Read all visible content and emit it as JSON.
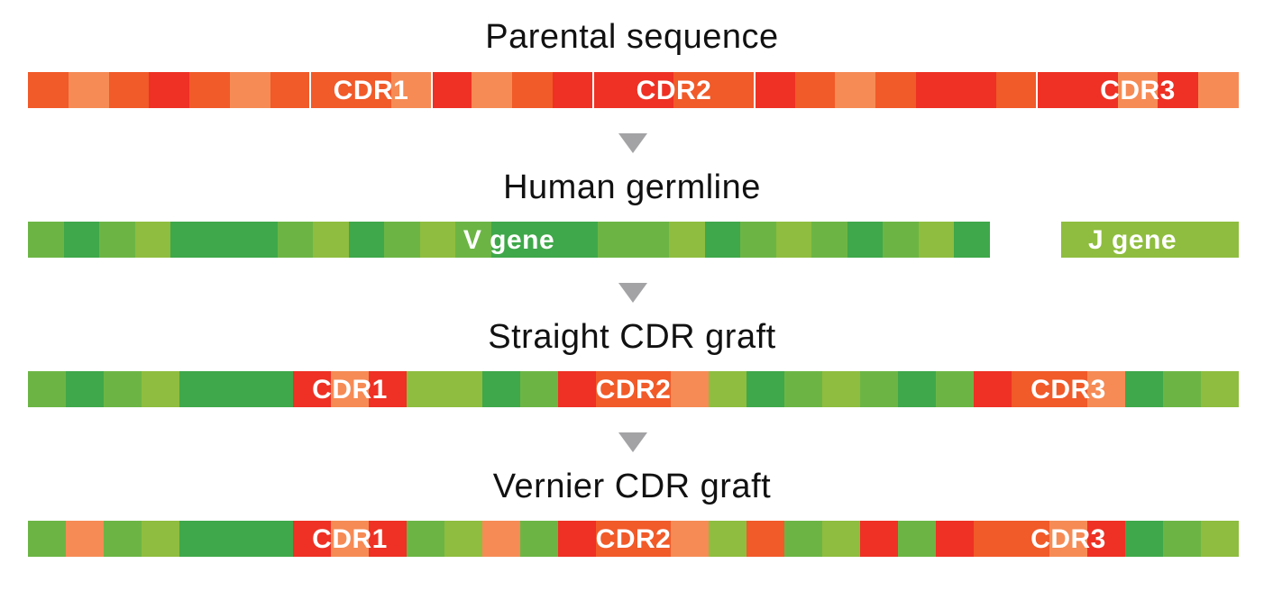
{
  "colors": {
    "o": "#f15a29",
    "l": "#f68b55",
    "r": "#ee3124",
    "g": "#6cb545",
    "d": "#3fa84a",
    "y": "#8fbd3f"
  },
  "rows": [
    {
      "title": "Parental sequence",
      "cells": "olorolooolrlorrroorolorrorrlrl",
      "labels": [
        {
          "text": "CDR1",
          "start": 7,
          "end": 10
        },
        {
          "text": "CDR2",
          "start": 14,
          "end": 18
        },
        {
          "text": "CDR3",
          "start": 25,
          "end": 30
        }
      ],
      "separators": [
        7,
        10,
        14,
        18,
        25,
        30
      ]
    },
    {
      "title": "Human germline",
      "cells": "gdgydddgydgygdddggydgygdgyd  yyyyy",
      "labels": [
        {
          "text": "V gene",
          "start": 12,
          "end": 15
        },
        {
          "text": "J gene",
          "start": 29,
          "end": 33
        }
      ],
      "separators": []
    },
    {
      "title": "Straight CDR graft",
      "cells": "gdgydddrlryydgroolydgygdgrooldgy",
      "labels": [
        {
          "text": "CDR1",
          "start": 7,
          "end": 10
        },
        {
          "text": "CDR2",
          "start": 14,
          "end": 18
        },
        {
          "text": "CDR3",
          "start": 25,
          "end": 30
        }
      ],
      "separators": []
    },
    {
      "title": "Vernier CDR graft",
      "cells": "glgydddrlrgylgroolyogyrgroolrdgy",
      "labels": [
        {
          "text": "CDR1",
          "start": 7,
          "end": 10
        },
        {
          "text": "CDR2",
          "start": 14,
          "end": 18
        },
        {
          "text": "CDR3",
          "start": 25,
          "end": 30
        }
      ],
      "separators": []
    }
  ]
}
